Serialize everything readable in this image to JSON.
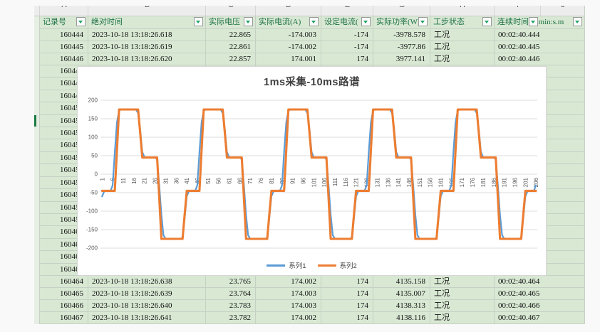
{
  "table": {
    "column_letters": [
      "A",
      "B",
      "C",
      "D",
      "E",
      "G",
      "H",
      "I",
      "J"
    ],
    "headers": [
      "记录号",
      "绝对时间",
      "实际电压",
      "实际电流(A)",
      "设定电流(",
      "实际功率(W",
      "工步状态",
      "连续时间(",
      "h:min:s.m"
    ],
    "rows_top": [
      [
        "160444",
        "2023-10-18 13:18:26.618",
        "22.865",
        "-174.003",
        "-174",
        "-3978.578",
        "工况",
        "00:02:40.444"
      ],
      [
        "160445",
        "2023-10-18 13:18:26.619",
        "22.861",
        "-174.002",
        "-174",
        "-3977.86",
        "工况",
        "00:02:40.445"
      ],
      [
        "160446",
        "2023-10-18 13:18:26.620",
        "22.857",
        "174.001",
        "174",
        "3977.141",
        "工况",
        "00:02:40.446"
      ]
    ],
    "middle_record_numbers": [
      "160447",
      "160448",
      "160449",
      "160450",
      "160451",
      "160452",
      "160453",
      "160454",
      "160455",
      "160456",
      "160457",
      "160458",
      "160459",
      "160460",
      "160461",
      "160462",
      "160463"
    ],
    "rows_bottom": [
      [
        "160464",
        "2023-10-18 13:18:26.638",
        "23.765",
        "174.002",
        "174",
        "4135.158",
        "工况",
        "00:02:40.464"
      ],
      [
        "160465",
        "2023-10-18 13:18:26.639",
        "23.764",
        "174.003",
        "174",
        "4135.007",
        "工况",
        "00:02:40.465"
      ],
      [
        "160466",
        "2023-10-18 13:18:26.640",
        "23.783",
        "174.003",
        "174",
        "4138.313",
        "工况",
        "00:02:40.466"
      ],
      [
        "160467",
        "2023-10-18 13:18:26.641",
        "23.782",
        "174.002",
        "174",
        "4138.116",
        "工况",
        "00:02:40.467"
      ]
    ]
  },
  "chart_data": {
    "type": "line",
    "title": "1ms采集-10ms路谱",
    "xlabel": "",
    "ylabel": "",
    "samples": 206,
    "x_tick_start": 1,
    "x_tick_step": 5,
    "x_tick_end": 206,
    "ylim": [
      -200,
      200
    ],
    "y_ticks": [
      200,
      150,
      100,
      50,
      0,
      -50,
      -100,
      -150,
      -200
    ],
    "grid": "horizontal",
    "legend_position": "bottom",
    "pattern_period": 40,
    "pattern_phase": 9,
    "series": [
      {
        "name": "系列1",
        "color": "#5B9BD5",
        "width": 2.2,
        "values_by_phase": [
          172,
          175,
          175,
          175,
          175,
          175,
          175,
          175,
          175,
          165,
          120,
          60,
          46,
          45,
          45,
          45,
          45,
          45,
          40,
          -30,
          -110,
          -165,
          -175,
          -175,
          -175,
          -175,
          -175,
          -175,
          -175,
          -175,
          -172,
          -120,
          -60,
          -46,
          -45,
          -45,
          -45,
          -30,
          60,
          140
        ]
      },
      {
        "name": "系列2",
        "color": "#ED7D31",
        "width": 3.1,
        "values_by_phase": [
          175,
          175,
          175,
          175,
          175,
          175,
          175,
          175,
          175,
          175,
          110,
          45,
          45,
          45,
          45,
          45,
          45,
          45,
          45,
          -65,
          -175,
          -175,
          -175,
          -175,
          -175,
          -175,
          -175,
          -175,
          -175,
          -175,
          -175,
          -110,
          -45,
          -45,
          -45,
          -45,
          -45,
          -45,
          -45,
          65
        ]
      }
    ]
  },
  "colors": {
    "cell_green": "#d8e8d3",
    "header_text_green": "#1e7145",
    "selection_green": "#1b7a42",
    "series1_blue": "#5B9BD5",
    "series2_orange": "#ED7D31"
  }
}
